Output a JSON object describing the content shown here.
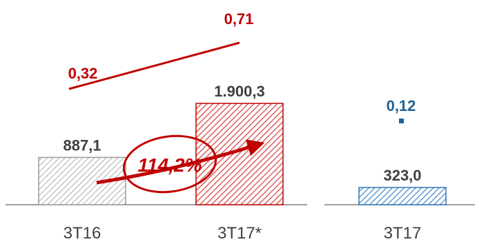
{
  "chart_data": {
    "type": "bar",
    "categories": [
      "3T16",
      "3T17*",
      "3T17"
    ],
    "values": [
      887.1,
      1900.3,
      323.0
    ],
    "value_labels": [
      "887,1",
      "1.900,3",
      "323,0"
    ],
    "secondary_series": {
      "type": "line",
      "values": [
        0.32,
        0.71,
        0.12
      ],
      "labels": [
        "0,32",
        "0,71",
        "0,12"
      ]
    },
    "annotation": "114,2%",
    "bar_colors": [
      "#9b9b9b",
      "#c00000",
      "#2e75b6"
    ],
    "line_colors": [
      "#c00000",
      "#c00000",
      "#1f6391"
    ],
    "bar_fill": "diagonal-hatch",
    "ylim": [
      0,
      2200
    ],
    "grid": false,
    "legend": "none"
  }
}
